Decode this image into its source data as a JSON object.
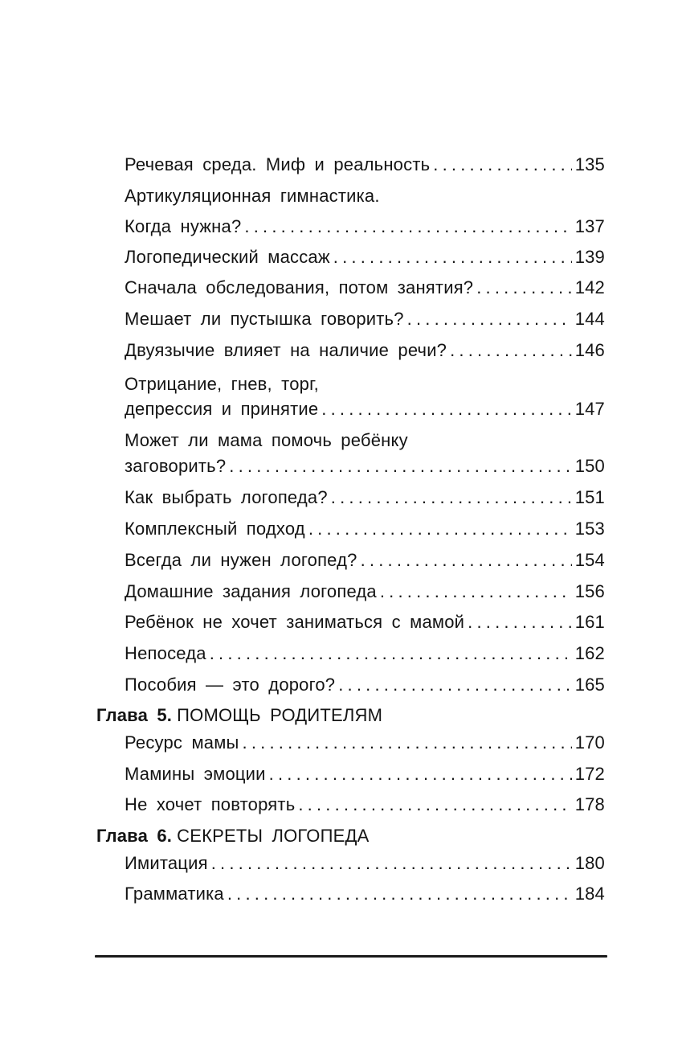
{
  "entries": [
    {
      "text": "Речевая среда. Миф и реальность",
      "page": "135"
    },
    {
      "text_line1": "Артикуляционная гимнастика.",
      "text": "Когда нужна?",
      "page": "137"
    },
    {
      "text": "Логопедический массаж",
      "page": "139"
    },
    {
      "text": "Сначала обследования, потом занятия?",
      "page": "142"
    },
    {
      "text": "Мешает ли пустышка говорить?",
      "page": "144"
    },
    {
      "text": "Двуязычие влияет на наличие речи?",
      "page": "146"
    },
    {
      "text_line1": "Отрицание, гнев, торг,",
      "text": "депрессия и принятие",
      "page": "147"
    },
    {
      "text_line1": "Может ли мама помочь ребёнку",
      "text": "заговорить?",
      "page": "150"
    },
    {
      "text": "Как выбрать логопеда?",
      "page": "151"
    },
    {
      "text": "Комплексный подход",
      "page": "153"
    },
    {
      "text": "Всегда ли нужен логопед?",
      "page": "154"
    },
    {
      "text": "Домашние задания логопеда",
      "page": "156"
    },
    {
      "text": "Ребёнок не хочет заниматься с мамой",
      "page": "161"
    },
    {
      "text": "Непоседа",
      "page": "162"
    },
    {
      "text": "Пособия — это дорого?",
      "page": "165"
    }
  ],
  "chapter5": {
    "label": "Глава 5.",
    "title": "ПОМОЩЬ РОДИТЕЛЯМ",
    "entries": [
      {
        "text": "Ресурс мамы",
        "page": "170"
      },
      {
        "text": "Мамины эмоции",
        "page": "172"
      },
      {
        "text": "Не хочет повторять",
        "page": "178"
      }
    ]
  },
  "chapter6": {
    "label": "Глава 6.",
    "title": "СЕКРЕТЫ ЛОГОПЕДА",
    "entries": [
      {
        "text": "Имитация",
        "page": "180"
      },
      {
        "text": "Грамматика",
        "page": "184"
      }
    ]
  }
}
